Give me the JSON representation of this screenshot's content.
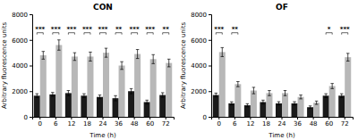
{
  "chart_data": [
    {
      "type": "bar",
      "title": "CON",
      "xlabel": "Time (h)",
      "ylabel": "Arbitrary fluorescence units",
      "categories": [
        "0",
        "6",
        "12",
        "18",
        "24",
        "36",
        "48",
        "60",
        "72"
      ],
      "series": [
        {
          "color": "#1a1a1a",
          "values": [
            1650,
            1750,
            1850,
            1650,
            1550,
            1450,
            2000,
            1150,
            1700
          ],
          "errors": [
            150,
            150,
            200,
            150,
            150,
            200,
            200,
            150,
            180
          ]
        },
        {
          "color": "#b8b8b8",
          "values": [
            4800,
            5600,
            4700,
            4700,
            5000,
            4000,
            4900,
            4500,
            4200
          ],
          "errors": [
            300,
            400,
            300,
            350,
            350,
            300,
            350,
            350,
            300
          ]
        }
      ],
      "annotations": [
        {
          "x": "0",
          "text": "***"
        },
        {
          "x": "6",
          "text": "***"
        },
        {
          "x": "12",
          "text": "***"
        },
        {
          "x": "18",
          "text": "***"
        },
        {
          "x": "24",
          "text": "***"
        },
        {
          "x": "36",
          "text": "**"
        },
        {
          "x": "48",
          "text": "***"
        },
        {
          "x": "60",
          "text": "***"
        },
        {
          "x": "72",
          "text": "**"
        }
      ],
      "ylim": [
        0,
        8000
      ],
      "yticks": [
        0,
        2000,
        4000,
        6000,
        8000
      ],
      "grid": false
    },
    {
      "type": "bar",
      "title": "OF",
      "xlabel": "Time (h)",
      "ylabel": "Arbitrary fluorescence units",
      "categories": [
        "0",
        "6",
        "12",
        "18",
        "24",
        "36",
        "48",
        "60",
        "72"
      ],
      "series": [
        {
          "color": "#1a1a1a",
          "values": [
            1700,
            1050,
            900,
            1150,
            1050,
            1050,
            750,
            1650,
            1650
          ],
          "errors": [
            150,
            120,
            120,
            150,
            130,
            130,
            100,
            150,
            150
          ]
        },
        {
          "color": "#b8b8b8",
          "values": [
            5050,
            2550,
            2050,
            1850,
            1850,
            1550,
            1100,
            2400,
            4650
          ],
          "errors": [
            350,
            200,
            250,
            200,
            200,
            150,
            130,
            200,
            300
          ]
        }
      ],
      "annotations": [
        {
          "x": "0",
          "text": "***"
        },
        {
          "x": "6",
          "text": "**"
        },
        {
          "x": "60",
          "text": "*"
        },
        {
          "x": "72",
          "text": "***"
        }
      ],
      "ylim": [
        0,
        8000
      ],
      "yticks": [
        0,
        2000,
        4000,
        6000,
        8000
      ],
      "grid": false
    }
  ]
}
